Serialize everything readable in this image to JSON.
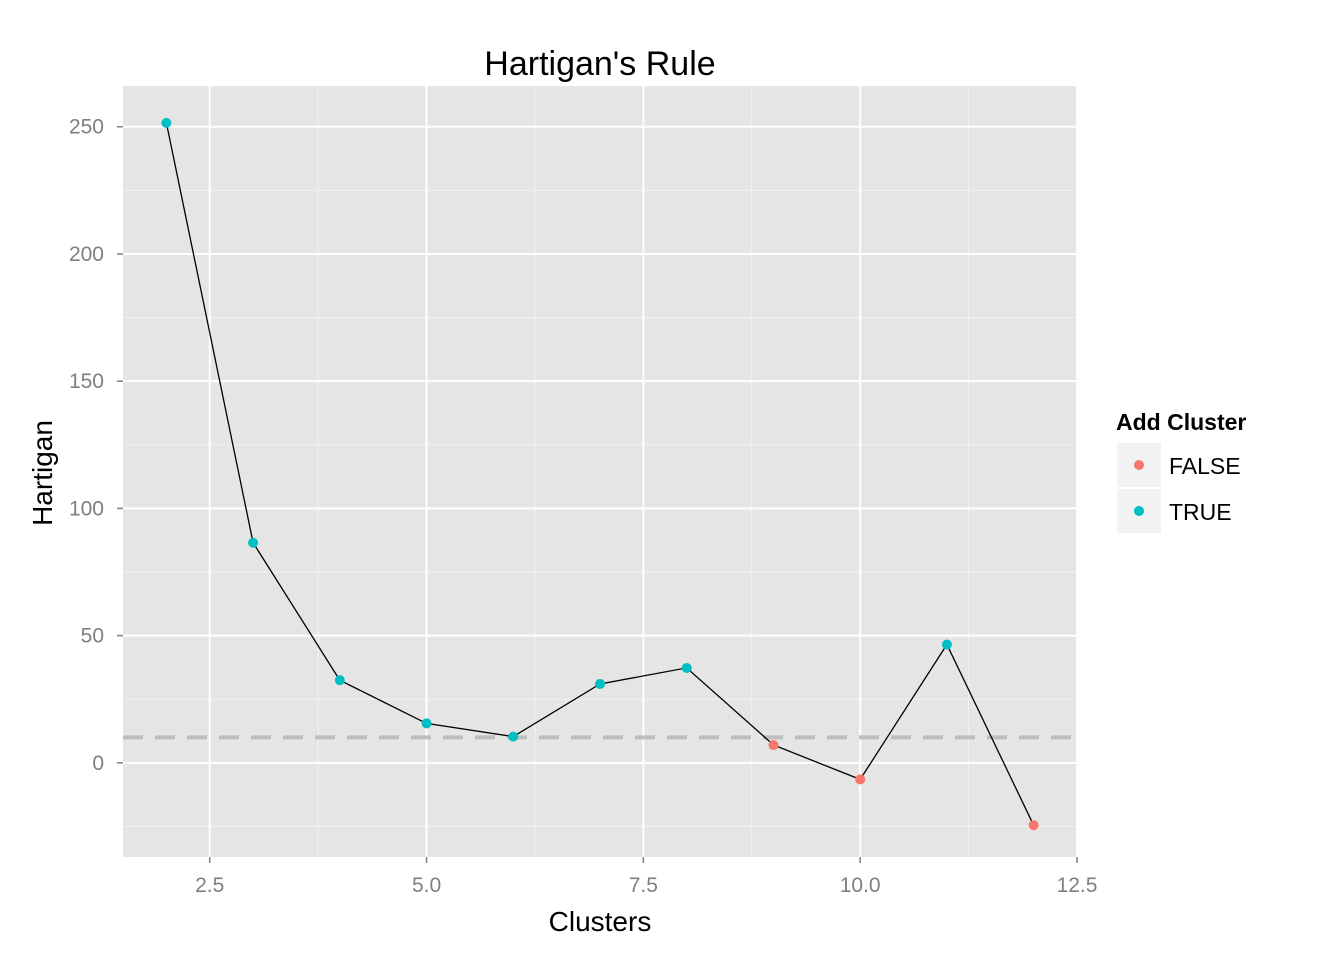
{
  "chart_data": {
    "type": "line",
    "title": "Hartigan's Rule",
    "xlabel": "Clusters",
    "ylabel": "Hartigan",
    "xlim": [
      1.5,
      12.5
    ],
    "ylim": [
      -37,
      266
    ],
    "x_ticks": [
      2.5,
      5.0,
      7.5,
      10.0,
      12.5
    ],
    "x_tick_labels": [
      "2.5",
      "5.0",
      "7.5",
      "10.0",
      "12.5"
    ],
    "y_ticks": [
      0,
      50,
      100,
      150,
      200,
      250
    ],
    "y_tick_labels": [
      "0",
      "50",
      "100",
      "150",
      "200",
      "250"
    ],
    "grid": true,
    "background_color": "#E5E5E5",
    "threshold_line": {
      "y": 10,
      "style": "dashed",
      "color": "#BEBEBE"
    },
    "line_color": "#000000",
    "series": [
      {
        "x": [
          2,
          3,
          4,
          5,
          6,
          7,
          8,
          9,
          10,
          11,
          12
        ],
        "y": [
          251.5,
          86.5,
          32.5,
          15.5,
          10.3,
          31,
          37.3,
          7,
          -6.5,
          46.5,
          -24.5
        ],
        "add_cluster": [
          true,
          true,
          true,
          true,
          true,
          true,
          true,
          false,
          false,
          true,
          false
        ]
      }
    ],
    "legend": {
      "title": "Add Cluster",
      "position": "right",
      "entries": [
        {
          "label": "FALSE",
          "color": "#F8766D"
        },
        {
          "label": "TRUE",
          "color": "#00BFC4"
        }
      ]
    }
  }
}
